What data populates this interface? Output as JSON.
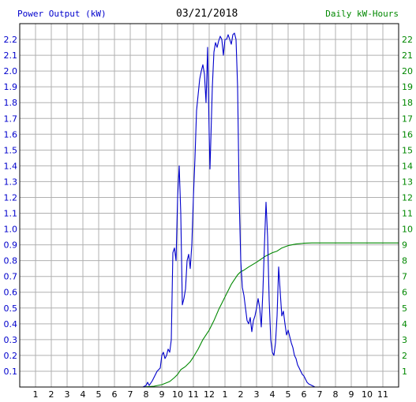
{
  "header": {
    "left_label": "Power Output (kW)",
    "date": "03/21/2018",
    "right_label": "Daily kW-Hours"
  },
  "colors": {
    "power": "#0000cc",
    "energy": "#008800",
    "grid": "#b0b0b0",
    "axis": "#000000",
    "background": "#ffffff"
  },
  "chart_data": {
    "type": "line",
    "title": "03/21/2018",
    "grid": true,
    "x_axis": {
      "range": [
        0,
        24
      ],
      "tick_values": [
        1,
        2,
        3,
        4,
        5,
        6,
        7,
        8,
        9,
        10,
        11,
        12,
        13,
        14,
        15,
        16,
        17,
        18,
        19,
        20,
        21,
        22,
        23
      ],
      "tick_labels": [
        "1",
        "2",
        "3",
        "4",
        "5",
        "6",
        "7",
        "8",
        "9",
        "10",
        "11",
        "12",
        "1",
        "2",
        "3",
        "4",
        "5",
        "6",
        "7",
        "8",
        "9",
        "10",
        "11"
      ]
    },
    "y_left": {
      "label": "Power Output (kW)",
      "range": [
        0,
        2.3
      ],
      "tick_labels": [
        "0.1",
        "0.2",
        "0.3",
        "0.4",
        "0.5",
        "0.6",
        "0.7",
        "0.8",
        "0.9",
        "1.0",
        "1.1",
        "1.2",
        "1.3",
        "1.4",
        "1.5",
        "1.6",
        "1.7",
        "1.8",
        "1.9",
        "2.0",
        "2.1",
        "2.2"
      ]
    },
    "y_right": {
      "label": "Daily kW-Hours",
      "range": [
        0,
        23
      ],
      "tick_labels": [
        "1",
        "2",
        "3",
        "4",
        "5",
        "6",
        "7",
        "8",
        "9",
        "10",
        "11",
        "12",
        "13",
        "14",
        "15",
        "16",
        "17",
        "18",
        "19",
        "20",
        "21",
        "22"
      ]
    },
    "series": [
      {
        "name": "Power Output (kW)",
        "axis": "left",
        "points": [
          [
            7.8,
            0
          ],
          [
            8.0,
            0.01
          ],
          [
            8.1,
            0.03
          ],
          [
            8.2,
            0.01
          ],
          [
            8.4,
            0.04
          ],
          [
            8.5,
            0.06
          ],
          [
            8.7,
            0.1
          ],
          [
            8.9,
            0.12
          ],
          [
            9.0,
            0.2
          ],
          [
            9.1,
            0.22
          ],
          [
            9.2,
            0.18
          ],
          [
            9.3,
            0.2
          ],
          [
            9.4,
            0.24
          ],
          [
            9.5,
            0.22
          ],
          [
            9.6,
            0.3
          ],
          [
            9.7,
            0.85
          ],
          [
            9.8,
            0.88
          ],
          [
            9.9,
            0.8
          ],
          [
            10.0,
            1.2
          ],
          [
            10.1,
            1.4
          ],
          [
            10.2,
            1.1
          ],
          [
            10.3,
            0.52
          ],
          [
            10.4,
            0.56
          ],
          [
            10.5,
            0.62
          ],
          [
            10.6,
            0.8
          ],
          [
            10.7,
            0.84
          ],
          [
            10.8,
            0.75
          ],
          [
            10.9,
            0.9
          ],
          [
            11.0,
            1.2
          ],
          [
            11.1,
            1.45
          ],
          [
            11.2,
            1.75
          ],
          [
            11.3,
            1.85
          ],
          [
            11.4,
            1.95
          ],
          [
            11.5,
            2.0
          ],
          [
            11.6,
            2.04
          ],
          [
            11.7,
            1.98
          ],
          [
            11.8,
            1.8
          ],
          [
            11.9,
            2.15
          ],
          [
            12.0,
            1.6
          ],
          [
            12.05,
            1.38
          ],
          [
            12.1,
            1.55
          ],
          [
            12.2,
            1.9
          ],
          [
            12.3,
            2.12
          ],
          [
            12.4,
            2.18
          ],
          [
            12.5,
            2.15
          ],
          [
            12.6,
            2.19
          ],
          [
            12.7,
            2.22
          ],
          [
            12.8,
            2.2
          ],
          [
            12.9,
            2.1
          ],
          [
            13.0,
            2.2
          ],
          [
            13.1,
            2.2
          ],
          [
            13.2,
            2.23
          ],
          [
            13.3,
            2.2
          ],
          [
            13.4,
            2.17
          ],
          [
            13.5,
            2.23
          ],
          [
            13.6,
            2.24
          ],
          [
            13.7,
            2.2
          ],
          [
            13.8,
            1.9
          ],
          [
            13.9,
            1.2
          ],
          [
            14.0,
            0.8
          ],
          [
            14.1,
            0.63
          ],
          [
            14.2,
            0.58
          ],
          [
            14.3,
            0.5
          ],
          [
            14.4,
            0.42
          ],
          [
            14.5,
            0.4
          ],
          [
            14.6,
            0.44
          ],
          [
            14.7,
            0.35
          ],
          [
            14.8,
            0.42
          ],
          [
            14.9,
            0.45
          ],
          [
            15.0,
            0.5
          ],
          [
            15.1,
            0.56
          ],
          [
            15.2,
            0.5
          ],
          [
            15.3,
            0.38
          ],
          [
            15.4,
            0.6
          ],
          [
            15.5,
            0.9
          ],
          [
            15.6,
            1.17
          ],
          [
            15.7,
            0.95
          ],
          [
            15.8,
            0.55
          ],
          [
            15.9,
            0.3
          ],
          [
            16.0,
            0.22
          ],
          [
            16.1,
            0.2
          ],
          [
            16.2,
            0.28
          ],
          [
            16.3,
            0.45
          ],
          [
            16.4,
            0.76
          ],
          [
            16.5,
            0.6
          ],
          [
            16.6,
            0.45
          ],
          [
            16.7,
            0.48
          ],
          [
            16.8,
            0.4
          ],
          [
            16.9,
            0.33
          ],
          [
            17.0,
            0.36
          ],
          [
            17.1,
            0.32
          ],
          [
            17.2,
            0.28
          ],
          [
            17.3,
            0.25
          ],
          [
            17.4,
            0.2
          ],
          [
            17.5,
            0.18
          ],
          [
            17.6,
            0.14
          ],
          [
            17.7,
            0.12
          ],
          [
            17.8,
            0.1
          ],
          [
            17.9,
            0.08
          ],
          [
            18.0,
            0.07
          ],
          [
            18.1,
            0.05
          ],
          [
            18.2,
            0.03
          ],
          [
            18.3,
            0.02
          ],
          [
            18.5,
            0.01
          ],
          [
            18.7,
            0
          ]
        ]
      },
      {
        "name": "Daily kW-Hours",
        "axis": "right",
        "points": [
          [
            7.8,
            0
          ],
          [
            8.5,
            0.05
          ],
          [
            9.0,
            0.15
          ],
          [
            9.5,
            0.35
          ],
          [
            9.8,
            0.6
          ],
          [
            10.0,
            0.8
          ],
          [
            10.2,
            1.1
          ],
          [
            10.5,
            1.3
          ],
          [
            10.8,
            1.6
          ],
          [
            11.0,
            1.9
          ],
          [
            11.3,
            2.4
          ],
          [
            11.6,
            3.0
          ],
          [
            12.0,
            3.6
          ],
          [
            12.3,
            4.2
          ],
          [
            12.6,
            4.9
          ],
          [
            13.0,
            5.7
          ],
          [
            13.4,
            6.5
          ],
          [
            13.8,
            7.1
          ],
          [
            14.0,
            7.3
          ],
          [
            14.2,
            7.4
          ],
          [
            14.5,
            7.6
          ],
          [
            15.0,
            7.9
          ],
          [
            15.3,
            8.1
          ],
          [
            15.6,
            8.3
          ],
          [
            15.8,
            8.4
          ],
          [
            16.0,
            8.5
          ],
          [
            16.3,
            8.6
          ],
          [
            16.6,
            8.8
          ],
          [
            17.0,
            8.95
          ],
          [
            17.5,
            9.05
          ],
          [
            18.0,
            9.1
          ],
          [
            18.5,
            9.12
          ],
          [
            19.0,
            9.12
          ],
          [
            24.0,
            9.12
          ]
        ]
      }
    ]
  }
}
